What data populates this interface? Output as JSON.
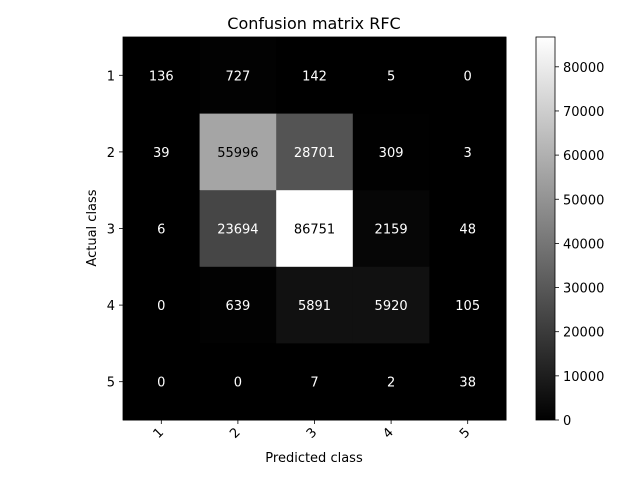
{
  "chart_data": {
    "type": "heatmap",
    "title": "Confusion matrix RFC",
    "xlabel": "Predicted class",
    "ylabel": "Actual class",
    "x_categories": [
      "1",
      "2",
      "3",
      "4",
      "5"
    ],
    "y_categories": [
      "1",
      "2",
      "3",
      "4",
      "5"
    ],
    "values": [
      [
        136,
        727,
        142,
        5,
        0
      ],
      [
        39,
        55996,
        28701,
        309,
        3
      ],
      [
        6,
        23694,
        86751,
        2159,
        48
      ],
      [
        0,
        639,
        5891,
        5920,
        105
      ],
      [
        0,
        0,
        7,
        2,
        38
      ]
    ],
    "colormap": "gray",
    "colorbar": {
      "min": 0,
      "max": 86751,
      "ticks": [
        0,
        10000,
        20000,
        30000,
        40000,
        50000,
        60000,
        70000,
        80000
      ]
    },
    "x_tick_rotation_deg": 45
  }
}
